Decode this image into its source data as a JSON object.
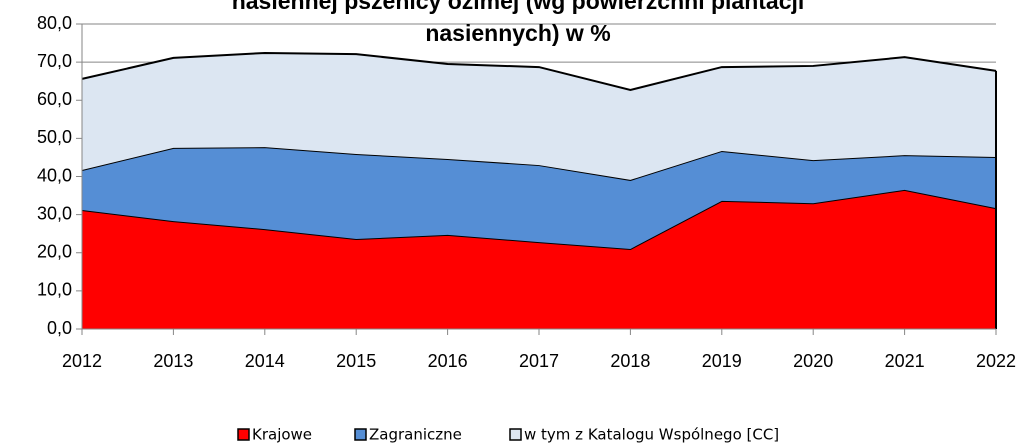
{
  "chart_data": {
    "type": "area",
    "stacked": true,
    "title": "nasiennej pszenicy ozimej (wg powierzchni plantacji nasiennych) w %",
    "x": [
      2012,
      2013,
      2014,
      2015,
      2016,
      2017,
      2018,
      2019,
      2020,
      2021,
      2022
    ],
    "xlim": [
      2012,
      2022
    ],
    "xticks": [
      2012,
      2013,
      2014,
      2015,
      2016,
      2017,
      2018,
      2019,
      2020,
      2021,
      2022
    ],
    "ylim": [
      0,
      80
    ],
    "yticks": [
      {
        "value": 0,
        "label": "0,0"
      },
      {
        "value": 10,
        "label": "10,0"
      },
      {
        "value": 20,
        "label": "20,0"
      },
      {
        "value": 30,
        "label": "30,0"
      },
      {
        "value": 40,
        "label": "40,0"
      },
      {
        "value": 50,
        "label": "50,0"
      },
      {
        "value": 60,
        "label": "60,0"
      },
      {
        "value": 70,
        "label": "70,0"
      },
      {
        "value": 80,
        "label": "80,0"
      }
    ],
    "grid": true,
    "legend": "bottom",
    "series": [
      {
        "name": "Krajowe",
        "color": "#ff0000",
        "values": [
          31.2,
          28.3,
          26.2,
          23.6,
          24.7,
          22.8,
          21.0,
          33.6,
          33.0,
          36.5,
          31.7
        ]
      },
      {
        "name": "Zagraniczne",
        "color": "#558ed5",
        "values": [
          10.5,
          19.2,
          21.5,
          22.3,
          19.9,
          20.2,
          18.1,
          13.1,
          11.3,
          9.1,
          13.4
        ]
      },
      {
        "name": "w tym z Katalogu Wspólnego [CC]",
        "color": "#dce6f2",
        "values": [
          23.9,
          23.6,
          24.7,
          26.2,
          24.9,
          25.7,
          23.6,
          22.0,
          24.7,
          25.7,
          22.6
        ]
      }
    ]
  }
}
